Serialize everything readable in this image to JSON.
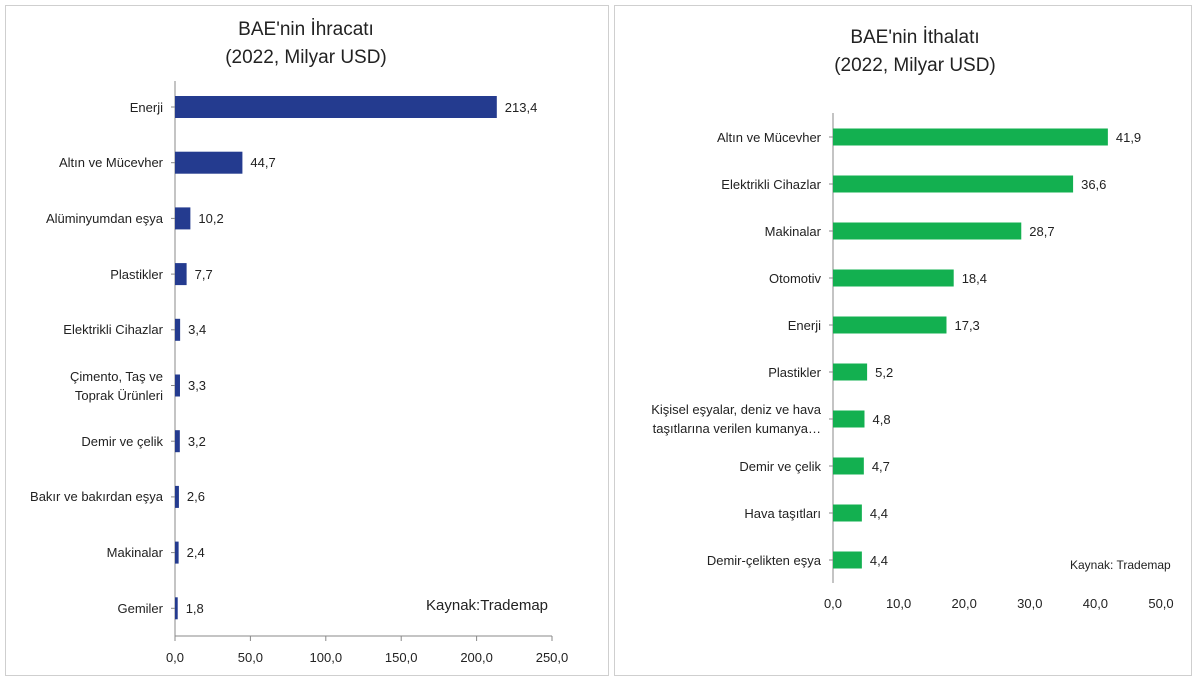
{
  "chart_data": [
    {
      "type": "bar",
      "orientation": "horizontal",
      "title": "BAE'nin İhracatı\n(2022, Milyar USD)",
      "categories": [
        "Enerji",
        "Altın ve Mücevher",
        "Alüminyumdan eşya",
        "Plastikler",
        "Elektrikli Cihazlar",
        "Çimento, Taş ve\nToprak Ürünleri",
        "Demir ve çelik",
        "Bakır ve bakırdan eşya",
        "Makinalar",
        "Gemiler"
      ],
      "values": [
        213.4,
        44.7,
        10.2,
        7.7,
        3.4,
        3.3,
        3.2,
        2.6,
        2.4,
        1.8
      ],
      "value_labels": [
        "213,4",
        "44,7",
        "10,2",
        "7,7",
        "3,4",
        "3,3",
        "3,2",
        "2,6",
        "2,4",
        "1,8"
      ],
      "color": "#243b8f",
      "xlim": [
        0,
        250
      ],
      "xticks": [
        {
          "value": 0,
          "label": "0,0"
        },
        {
          "value": 50,
          "label": "50,0"
        },
        {
          "value": 100,
          "label": "100,0"
        },
        {
          "value": 150,
          "label": "150,0"
        },
        {
          "value": 200,
          "label": "200,0"
        },
        {
          "value": 250,
          "label": "250,0"
        }
      ],
      "annotation": "Kaynak:Trademap"
    },
    {
      "type": "bar",
      "orientation": "horizontal",
      "title": "BAE'nin İthalatı\n(2022, Milyar USD)",
      "categories": [
        "Altın ve Mücevher",
        "Elektrikli Cihazlar",
        "Makinalar",
        "Otomotiv",
        "Enerji",
        "Plastikler",
        "Kişisel eşyalar, deniz ve hava\ntaşıtlarına verilen kumanya…",
        "Demir ve çelik",
        "Hava taşıtları",
        "Demir-çelikten eşya"
      ],
      "values": [
        41.9,
        36.6,
        28.7,
        18.4,
        17.3,
        5.2,
        4.8,
        4.7,
        4.4,
        4.4
      ],
      "value_labels": [
        "41,9",
        "36,6",
        "28,7",
        "18,4",
        "17,3",
        "5,2",
        "4,8",
        "4,7",
        "4,4",
        "4,4"
      ],
      "color": "#13b050",
      "xlim": [
        0,
        50
      ],
      "xticks": [
        {
          "value": 0,
          "label": "0,0"
        },
        {
          "value": 10,
          "label": "10,0"
        },
        {
          "value": 20,
          "label": "20,0"
        },
        {
          "value": 30,
          "label": "30,0"
        },
        {
          "value": 40,
          "label": "40,0"
        },
        {
          "value": 50,
          "label": "50,0"
        }
      ],
      "annotation": "Kaynak: Trademap"
    }
  ]
}
